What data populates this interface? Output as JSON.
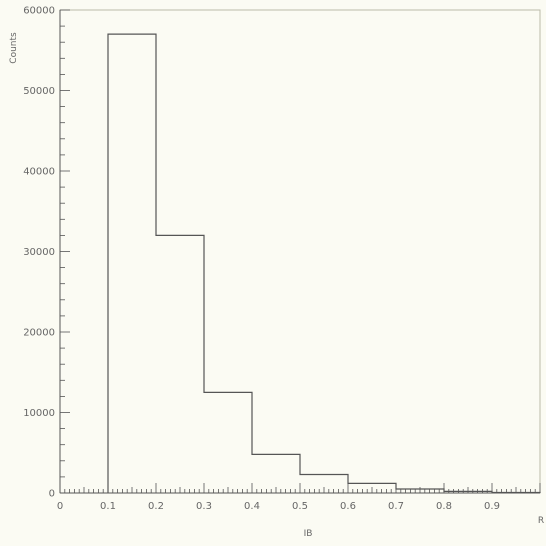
{
  "chart_data": {
    "type": "bar",
    "histogram": true,
    "bin_edges": [
      0.1,
      0.2,
      0.3,
      0.4,
      0.5,
      0.6,
      0.7,
      0.8,
      0.9,
      1.0
    ],
    "values": [
      57000,
      32000,
      12500,
      4800,
      2300,
      1200,
      500,
      200,
      60
    ],
    "ylabel": "Counts",
    "xlabel": "IB",
    "x_end_label": "R",
    "xlim": [
      0,
      1.0
    ],
    "ylim": [
      0,
      60000
    ],
    "x_ticks": [
      "0",
      "0.1",
      "0.2",
      "0.3",
      "0.4",
      "0.5",
      "0.6",
      "0.7",
      "0.8",
      "0.9"
    ],
    "y_ticks": [
      "0",
      "10000",
      "20000",
      "30000",
      "40000",
      "50000",
      "60000"
    ],
    "grid": false,
    "colors": {
      "background": "#fbfbf3",
      "line": "#555555",
      "text": "#666666"
    }
  }
}
